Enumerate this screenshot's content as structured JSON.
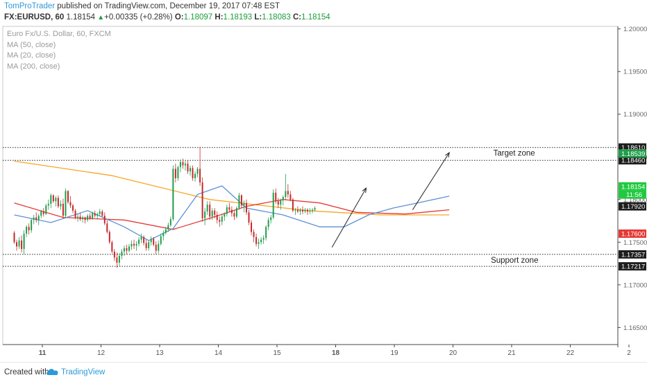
{
  "header": {
    "author": "TomProTrader",
    "published_text": "published on TradingView.com, December 19, 2017 07:48 EST",
    "symbol": "FX:EURUSD, 60",
    "last": "1.18154",
    "change": "+0.00335 (+0.28%)",
    "o_label": "O:",
    "o": "1.18097",
    "h_label": "H:",
    "h": "1.18193",
    "l_label": "L:",
    "l": "1.18083",
    "c_label": "C:",
    "c": "1.18154"
  },
  "legend": {
    "title": "Euro Fx/U.S. Dollar, 60, FXCM",
    "ma50": "MA (50, close)",
    "ma20": "MA (20, close)",
    "ma200": "MA (200, close)"
  },
  "footer": {
    "created": "Created with",
    "brand": "TradingView"
  },
  "colors": {
    "up": "#1f9d4a",
    "down": "#c62828",
    "ma20": "#5b8fd6",
    "ma50": "#e53935",
    "ma200": "#f5a623",
    "axis": "#555555"
  },
  "chart_data": {
    "type": "candlestick",
    "ylim": [
      1.163,
      1.2003
    ],
    "y_ticks": [
      "1.20000",
      "1.19500",
      "1.19000",
      "1.18500",
      "1.18000",
      "1.17500",
      "1.17000",
      "1.16500"
    ],
    "x_ticks": [
      "11",
      "12",
      "13",
      "14",
      "15",
      "18",
      "19",
      "20",
      "21",
      "22",
      "2"
    ],
    "bars_per_day": 24,
    "day_ticks_index": [
      0,
      24,
      48,
      72,
      96,
      120,
      144,
      168,
      192,
      216,
      240
    ],
    "price_levels": [
      {
        "value": 1.1861,
        "label": "1.18610",
        "style": "dotted"
      },
      {
        "value": 1.1846,
        "label": "1.18460",
        "style": "dotted"
      },
      {
        "value": 1.17357,
        "label": "1.17357",
        "style": "dotted"
      },
      {
        "value": 1.17217,
        "label": "1.17217",
        "style": "dotted"
      }
    ],
    "price_tags": [
      {
        "value": 1.18539,
        "label": "1.18539",
        "bg": "#1f9d4a",
        "fg": "#ffffff"
      },
      {
        "value": 1.18154,
        "label": "1.18154",
        "bg": "#22c940",
        "fg": "#ffffff"
      },
      {
        "value": 1.18058,
        "label": "11:56",
        "bg": "#22c940",
        "fg": "#ffffff"
      },
      {
        "value": 1.1792,
        "label": "1.17920",
        "bg": "#1e1e1e",
        "fg": "#ffffff"
      },
      {
        "value": 1.176,
        "label": "1.17600",
        "bg": "#e53935",
        "fg": "#ffffff"
      }
    ],
    "annotations": [
      {
        "text": "Target zone",
        "x_index": 196,
        "y": 1.18545
      },
      {
        "text": "Support zone",
        "x_index": 195,
        "y": 1.1729
      }
    ],
    "arrows": [
      {
        "from": [
          130,
          1.1744
        ],
        "to": [
          144,
          1.18135
        ]
      },
      {
        "from": [
          163,
          1.1788
        ],
        "to": [
          178,
          1.1855
        ]
      }
    ],
    "candles": [
      [
        1.1761,
        1.1763,
        1.1748,
        1.175
      ],
      [
        1.175,
        1.1753,
        1.174,
        1.1745
      ],
      [
        1.1745,
        1.1756,
        1.1742,
        1.1752
      ],
      [
        1.1752,
        1.1758,
        1.1738,
        1.1742
      ],
      [
        1.1742,
        1.1764,
        1.1736,
        1.176
      ],
      [
        1.176,
        1.177,
        1.1756,
        1.1768
      ],
      [
        1.1768,
        1.1772,
        1.1759,
        1.1764
      ],
      [
        1.1764,
        1.1778,
        1.1761,
        1.1776
      ],
      [
        1.1776,
        1.1782,
        1.1771,
        1.1779
      ],
      [
        1.1779,
        1.1785,
        1.1773,
        1.1776
      ],
      [
        1.1776,
        1.1783,
        1.177,
        1.1781
      ],
      [
        1.1781,
        1.1788,
        1.1778,
        1.1786
      ],
      [
        1.1786,
        1.179,
        1.178,
        1.1783
      ],
      [
        1.1783,
        1.1795,
        1.1782,
        1.1793
      ],
      [
        1.1793,
        1.18,
        1.1788,
        1.1795
      ],
      [
        1.1795,
        1.1807,
        1.179,
        1.1805
      ],
      [
        1.1805,
        1.1806,
        1.1796,
        1.1798
      ],
      [
        1.1798,
        1.1804,
        1.1792,
        1.1802
      ],
      [
        1.1802,
        1.1805,
        1.179,
        1.1792
      ],
      [
        1.1792,
        1.1799,
        1.1788,
        1.1795
      ],
      [
        1.1795,
        1.1801,
        1.1778,
        1.1781
      ],
      [
        1.1781,
        1.1813,
        1.1778,
        1.181
      ],
      [
        1.181,
        1.1811,
        1.1795,
        1.1797
      ],
      [
        1.1797,
        1.1804,
        1.179,
        1.1793
      ],
      [
        1.1793,
        1.1795,
        1.1784,
        1.1787
      ],
      [
        1.1787,
        1.1789,
        1.1777,
        1.1779
      ],
      [
        1.1779,
        1.1783,
        1.1774,
        1.178
      ],
      [
        1.178,
        1.1784,
        1.1775,
        1.1777
      ],
      [
        1.1777,
        1.1781,
        1.1773,
        1.1779
      ],
      [
        1.1779,
        1.178,
        1.1772,
        1.1776
      ],
      [
        1.1776,
        1.1783,
        1.1774,
        1.1781
      ],
      [
        1.1781,
        1.1784,
        1.1776,
        1.1778
      ],
      [
        1.1778,
        1.1786,
        1.1776,
        1.1784
      ],
      [
        1.1784,
        1.1787,
        1.1779,
        1.1781
      ],
      [
        1.1781,
        1.1785,
        1.1777,
        1.1783
      ],
      [
        1.1783,
        1.1789,
        1.178,
        1.1786
      ],
      [
        1.1786,
        1.1788,
        1.1779,
        1.1781
      ],
      [
        1.1781,
        1.1785,
        1.177,
        1.1772
      ],
      [
        1.1772,
        1.1776,
        1.176,
        1.1762
      ],
      [
        1.1762,
        1.1764,
        1.1748,
        1.175
      ],
      [
        1.175,
        1.1752,
        1.1737,
        1.1739
      ],
      [
        1.1739,
        1.1742,
        1.1728,
        1.1732
      ],
      [
        1.1732,
        1.1738,
        1.172,
        1.1726
      ],
      [
        1.1726,
        1.1737,
        1.1722,
        1.1734
      ],
      [
        1.1734,
        1.1742,
        1.173,
        1.1739
      ],
      [
        1.1739,
        1.1746,
        1.1734,
        1.1743
      ],
      [
        1.1743,
        1.1747,
        1.1736,
        1.174
      ],
      [
        1.174,
        1.1748,
        1.1738,
        1.1745
      ],
      [
        1.1745,
        1.1752,
        1.1741,
        1.1748
      ],
      [
        1.1748,
        1.1753,
        1.1742,
        1.1746
      ],
      [
        1.1746,
        1.1751,
        1.174,
        1.1748
      ],
      [
        1.1748,
        1.1756,
        1.1745,
        1.1753
      ],
      [
        1.1753,
        1.176,
        1.1749,
        1.1756
      ],
      [
        1.1756,
        1.1758,
        1.1746,
        1.1749
      ],
      [
        1.1749,
        1.1753,
        1.174,
        1.1743
      ],
      [
        1.1743,
        1.1752,
        1.174,
        1.175
      ],
      [
        1.175,
        1.1757,
        1.1746,
        1.1754
      ],
      [
        1.1754,
        1.1756,
        1.1745,
        1.1747
      ],
      [
        1.1747,
        1.1751,
        1.1736,
        1.174
      ],
      [
        1.174,
        1.1752,
        1.1737,
        1.1748
      ],
      [
        1.1748,
        1.176,
        1.1746,
        1.1757
      ],
      [
        1.1757,
        1.1764,
        1.1752,
        1.1761
      ],
      [
        1.1761,
        1.1768,
        1.1759,
        1.1765
      ],
      [
        1.1765,
        1.1773,
        1.1762,
        1.177
      ],
      [
        1.177,
        1.178,
        1.1768,
        1.1777
      ],
      [
        1.1777,
        1.184,
        1.1775,
        1.1836
      ],
      [
        1.1836,
        1.1842,
        1.182,
        1.1825
      ],
      [
        1.1825,
        1.184,
        1.1822,
        1.1838
      ],
      [
        1.1838,
        1.1847,
        1.1832,
        1.1844
      ],
      [
        1.1844,
        1.1848,
        1.1836,
        1.184
      ],
      [
        1.184,
        1.1845,
        1.1834,
        1.1842
      ],
      [
        1.1842,
        1.1846,
        1.183,
        1.1833
      ],
      [
        1.1833,
        1.184,
        1.1828,
        1.1837
      ],
      [
        1.1837,
        1.184,
        1.1822,
        1.1825
      ],
      [
        1.1825,
        1.1833,
        1.1821,
        1.183
      ],
      [
        1.183,
        1.1838,
        1.1826,
        1.1836
      ],
      [
        1.1836,
        1.1862,
        1.1816,
        1.182
      ],
      [
        1.182,
        1.1826,
        1.1774,
        1.1778
      ],
      [
        1.1778,
        1.179,
        1.177,
        1.1786
      ],
      [
        1.1786,
        1.1798,
        1.1782,
        1.1794
      ],
      [
        1.1794,
        1.1798,
        1.1776,
        1.178
      ],
      [
        1.178,
        1.179,
        1.1776,
        1.1787
      ],
      [
        1.1787,
        1.179,
        1.1778,
        1.1782
      ],
      [
        1.1782,
        1.1786,
        1.1772,
        1.1776
      ],
      [
        1.1776,
        1.178,
        1.1768,
        1.1774
      ],
      [
        1.1774,
        1.1783,
        1.177,
        1.178
      ],
      [
        1.178,
        1.1785,
        1.1775,
        1.1783
      ],
      [
        1.1783,
        1.1794,
        1.178,
        1.1791
      ],
      [
        1.1791,
        1.1796,
        1.1785,
        1.1788
      ],
      [
        1.1788,
        1.1792,
        1.178,
        1.1784
      ],
      [
        1.1784,
        1.1788,
        1.1776,
        1.178
      ],
      [
        1.178,
        1.1792,
        1.1778,
        1.179
      ],
      [
        1.179,
        1.1808,
        1.1788,
        1.1805
      ],
      [
        1.1805,
        1.1806,
        1.179,
        1.1793
      ],
      [
        1.1793,
        1.1799,
        1.1785,
        1.1796
      ],
      [
        1.1796,
        1.18,
        1.1782,
        1.1785
      ],
      [
        1.1785,
        1.1788,
        1.177,
        1.1773
      ],
      [
        1.1773,
        1.1776,
        1.1758,
        1.1762
      ],
      [
        1.1762,
        1.1765,
        1.175,
        1.1756
      ],
      [
        1.1756,
        1.176,
        1.1745,
        1.1748
      ],
      [
        1.1748,
        1.1754,
        1.1742,
        1.175
      ],
      [
        1.175,
        1.1756,
        1.1747,
        1.1753
      ],
      [
        1.1753,
        1.1758,
        1.1748,
        1.1755
      ],
      [
        1.1755,
        1.177,
        1.1752,
        1.1768
      ],
      [
        1.1768,
        1.1779,
        1.1764,
        1.1776
      ],
      [
        1.1776,
        1.1782,
        1.1772,
        1.1779
      ],
      [
        1.1779,
        1.1812,
        1.1777,
        1.1808
      ],
      [
        1.1808,
        1.1813,
        1.1795,
        1.1798
      ],
      [
        1.1798,
        1.1802,
        1.179,
        1.1794
      ],
      [
        1.1794,
        1.1801,
        1.1788,
        1.1799
      ],
      [
        1.1799,
        1.1805,
        1.1793,
        1.1803
      ],
      [
        1.1803,
        1.183,
        1.18,
        1.181
      ],
      [
        1.181,
        1.1818,
        1.1802,
        1.1806
      ],
      [
        1.1806,
        1.181,
        1.1798,
        1.18
      ],
      [
        1.18,
        1.1802,
        1.1785,
        1.1787
      ],
      [
        1.1787,
        1.179,
        1.1782,
        1.1788
      ],
      [
        1.1788,
        1.1792,
        1.1784,
        1.1786
      ],
      [
        1.1786,
        1.179,
        1.1782,
        1.1788
      ],
      [
        1.1788,
        1.1792,
        1.1783,
        1.1786
      ],
      [
        1.1786,
        1.179,
        1.1784,
        1.1788
      ],
      [
        1.1788,
        1.179,
        1.1782,
        1.1786
      ],
      [
        1.1786,
        1.179,
        1.1783,
        1.1787
      ],
      [
        1.1787,
        1.179,
        1.1784,
        1.1788
      ],
      [
        1.1788,
        1.1792,
        1.1786,
        1.179
      ]
    ],
    "ma20": [
      [
        0,
        1.1782
      ],
      [
        15,
        1.1773
      ],
      [
        30,
        1.1787
      ],
      [
        45,
        1.1768
      ],
      [
        55,
        1.1752
      ],
      [
        65,
        1.1766
      ],
      [
        75,
        1.1806
      ],
      [
        85,
        1.1816
      ],
      [
        95,
        1.179
      ],
      [
        110,
        1.1782
      ],
      [
        125,
        1.1768
      ],
      [
        135,
        1.1768
      ],
      [
        145,
        1.1782
      ],
      [
        155,
        1.179
      ],
      [
        165,
        1.1796
      ],
      [
        178,
        1.1804
      ]
    ],
    "ma50": [
      [
        0,
        1.1796
      ],
      [
        20,
        1.1779
      ],
      [
        45,
        1.1776
      ],
      [
        65,
        1.1765
      ],
      [
        80,
        1.1778
      ],
      [
        95,
        1.1792
      ],
      [
        110,
        1.18
      ],
      [
        125,
        1.1796
      ],
      [
        140,
        1.1785
      ],
      [
        160,
        1.1783
      ],
      [
        178,
        1.1788
      ]
    ],
    "ma200": [
      [
        0,
        1.1845
      ],
      [
        40,
        1.1828
      ],
      [
        80,
        1.18
      ],
      [
        120,
        1.1787
      ],
      [
        150,
        1.1782
      ],
      [
        178,
        1.1782
      ]
    ]
  }
}
